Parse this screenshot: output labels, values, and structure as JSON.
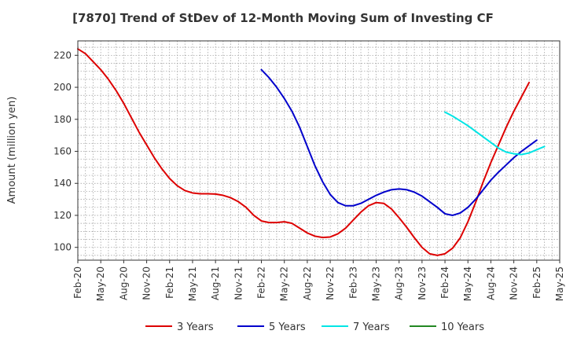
{
  "chart_data": {
    "type": "line",
    "title": "[7870]  Trend of StDev of 12-Month Moving Sum of Investing CF",
    "ylabel": "Amount (million yen)",
    "xlabel": "",
    "ylim": [
      92,
      229
    ],
    "yticks": [
      100,
      120,
      140,
      160,
      180,
      200,
      220
    ],
    "xlim": [
      "2020-02",
      "2025-05"
    ],
    "xticks": [
      "Feb-20",
      "May-20",
      "Aug-20",
      "Nov-20",
      "Feb-21",
      "May-21",
      "Aug-21",
      "Nov-21",
      "Feb-22",
      "May-22",
      "Aug-22",
      "Nov-22",
      "Feb-23",
      "May-23",
      "Aug-23",
      "Nov-23",
      "Feb-24",
      "May-24",
      "Aug-24",
      "Nov-24",
      "Feb-25",
      "May-25"
    ],
    "grid": true,
    "legend_position": "bottom",
    "series": [
      {
        "name": "3 Years",
        "color": "#dd0000",
        "points": [
          [
            "2020-02",
            224
          ],
          [
            "2020-03",
            221
          ],
          [
            "2020-04",
            216
          ],
          [
            "2020-05",
            211
          ],
          [
            "2020-06",
            205
          ],
          [
            "2020-07",
            198
          ],
          [
            "2020-08",
            190
          ],
          [
            "2020-09",
            181
          ],
          [
            "2020-10",
            172
          ],
          [
            "2020-11",
            164
          ],
          [
            "2020-12",
            156
          ],
          [
            "2021-01",
            149
          ],
          [
            "2021-02",
            143
          ],
          [
            "2021-03",
            138.5
          ],
          [
            "2021-04",
            135.5
          ],
          [
            "2021-05",
            134
          ],
          [
            "2021-06",
            133.5
          ],
          [
            "2021-07",
            133.5
          ],
          [
            "2021-08",
            133.3
          ],
          [
            "2021-09",
            132.5
          ],
          [
            "2021-10",
            131
          ],
          [
            "2021-11",
            128.5
          ],
          [
            "2021-12",
            125
          ],
          [
            "2022-01",
            120
          ],
          [
            "2022-02",
            116.5
          ],
          [
            "2022-03",
            115.5
          ],
          [
            "2022-04",
            115.5
          ],
          [
            "2022-05",
            116
          ],
          [
            "2022-06",
            115
          ],
          [
            "2022-07",
            112
          ],
          [
            "2022-08",
            109
          ],
          [
            "2022-09",
            107
          ],
          [
            "2022-10",
            106.2
          ],
          [
            "2022-11",
            106.5
          ],
          [
            "2022-12",
            108.5
          ],
          [
            "2023-01",
            112
          ],
          [
            "2023-02",
            117
          ],
          [
            "2023-03",
            122
          ],
          [
            "2023-04",
            126
          ],
          [
            "2023-05",
            128
          ],
          [
            "2023-06",
            127.5
          ],
          [
            "2023-07",
            124
          ],
          [
            "2023-08",
            118.5
          ],
          [
            "2023-09",
            112.5
          ],
          [
            "2023-10",
            106
          ],
          [
            "2023-11",
            100
          ],
          [
            "2023-12",
            96
          ],
          [
            "2024-01",
            95
          ],
          [
            "2024-02",
            96
          ],
          [
            "2024-03",
            99.5
          ],
          [
            "2024-04",
            106
          ],
          [
            "2024-05",
            116
          ],
          [
            "2024-06",
            128
          ],
          [
            "2024-07",
            141
          ],
          [
            "2024-08",
            153
          ],
          [
            "2024-09",
            164
          ],
          [
            "2024-10",
            175
          ],
          [
            "2024-11",
            185
          ],
          [
            "2024-12",
            194
          ],
          [
            "2025-01",
            203
          ]
        ]
      },
      {
        "name": "5 Years",
        "color": "#0000cc",
        "points": [
          [
            "2022-02",
            211
          ],
          [
            "2022-03",
            206
          ],
          [
            "2022-04",
            200
          ],
          [
            "2022-05",
            193
          ],
          [
            "2022-06",
            185
          ],
          [
            "2022-07",
            175
          ],
          [
            "2022-08",
            163
          ],
          [
            "2022-09",
            151
          ],
          [
            "2022-10",
            141
          ],
          [
            "2022-11",
            133
          ],
          [
            "2022-12",
            128
          ],
          [
            "2023-01",
            126
          ],
          [
            "2023-02",
            126
          ],
          [
            "2023-03",
            127.5
          ],
          [
            "2023-04",
            130
          ],
          [
            "2023-05",
            132.5
          ],
          [
            "2023-06",
            134.5
          ],
          [
            "2023-07",
            136
          ],
          [
            "2023-08",
            136.5
          ],
          [
            "2023-09",
            136
          ],
          [
            "2023-10",
            134.5
          ],
          [
            "2023-11",
            132
          ],
          [
            "2023-12",
            128.5
          ],
          [
            "2024-01",
            125
          ],
          [
            "2024-02",
            121
          ],
          [
            "2024-03",
            120
          ],
          [
            "2024-04",
            121.5
          ],
          [
            "2024-05",
            125
          ],
          [
            "2024-06",
            130
          ],
          [
            "2024-07",
            136
          ],
          [
            "2024-08",
            142
          ],
          [
            "2024-09",
            147
          ],
          [
            "2024-10",
            151.5
          ],
          [
            "2024-11",
            156
          ],
          [
            "2024-12",
            160
          ],
          [
            "2025-01",
            163.5
          ],
          [
            "2025-02",
            167
          ]
        ]
      },
      {
        "name": "7 Years",
        "color": "#00e5e5",
        "points": [
          [
            "2024-02",
            184.5
          ],
          [
            "2024-03",
            182
          ],
          [
            "2024-04",
            179
          ],
          [
            "2024-05",
            176
          ],
          [
            "2024-06",
            172.5
          ],
          [
            "2024-07",
            169
          ],
          [
            "2024-08",
            165.5
          ],
          [
            "2024-09",
            162
          ],
          [
            "2024-10",
            159.5
          ],
          [
            "2024-11",
            158.5
          ],
          [
            "2024-12",
            158
          ],
          [
            "2025-01",
            159
          ],
          [
            "2025-02",
            161
          ],
          [
            "2025-03",
            163
          ]
        ]
      },
      {
        "name": "10 Years",
        "color": "#228822",
        "points": []
      }
    ]
  }
}
